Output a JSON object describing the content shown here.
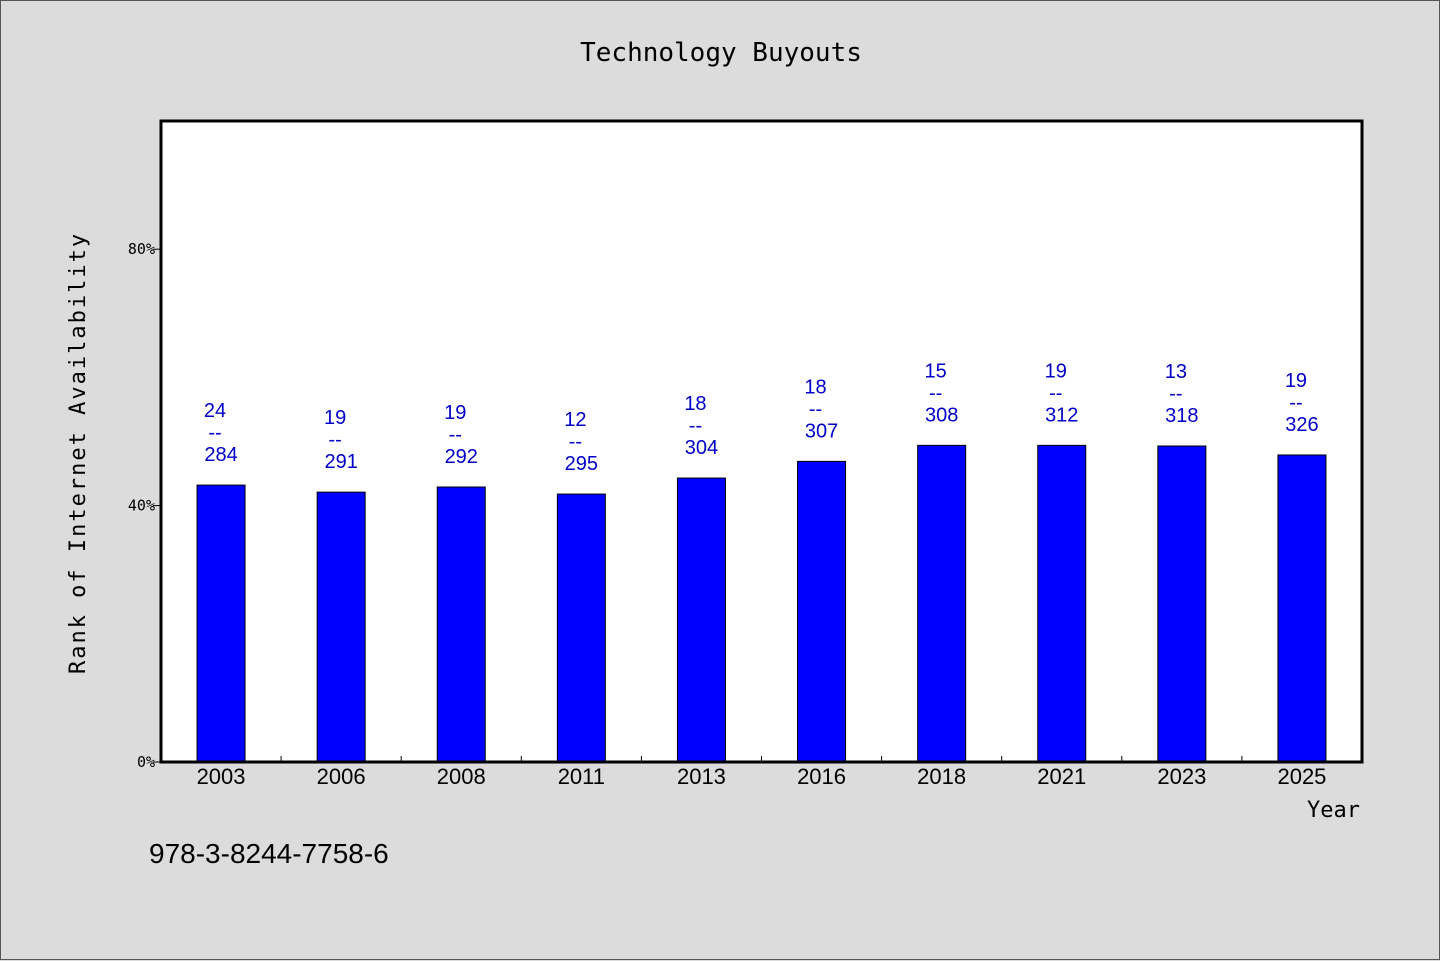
{
  "chart_data": {
    "type": "bar",
    "title": "Technology Buyouts",
    "xlabel": "Year",
    "ylabel": "Rank of Internet Availability",
    "categories": [
      "2003",
      "2006",
      "2008",
      "2011",
      "2013",
      "2016",
      "2018",
      "2021",
      "2023",
      "2025"
    ],
    "values": [
      43.2,
      42.1,
      42.9,
      41.8,
      44.3,
      46.9,
      49.4,
      49.4,
      49.3,
      47.9
    ],
    "bar_labels_top": [
      "24",
      "19",
      "19",
      "12",
      "18",
      "18",
      "15",
      "19",
      "13",
      "19"
    ],
    "bar_labels_separator": "--",
    "bar_labels_bottom": [
      "284",
      "291",
      "292",
      "295",
      "304",
      "307",
      "308",
      "312",
      "318",
      "326"
    ],
    "ylim": [
      0,
      100
    ],
    "yticks": [
      0,
      40,
      80
    ],
    "ytick_labels": [
      "0%",
      "40%",
      "80%"
    ],
    "grid": false,
    "colors": {
      "bar": "#0000ff",
      "label": "#0000c8",
      "background": "#dcdcdc",
      "plot_background": "#ffffff"
    }
  },
  "footer_text": "978-3-8244-7758-6"
}
